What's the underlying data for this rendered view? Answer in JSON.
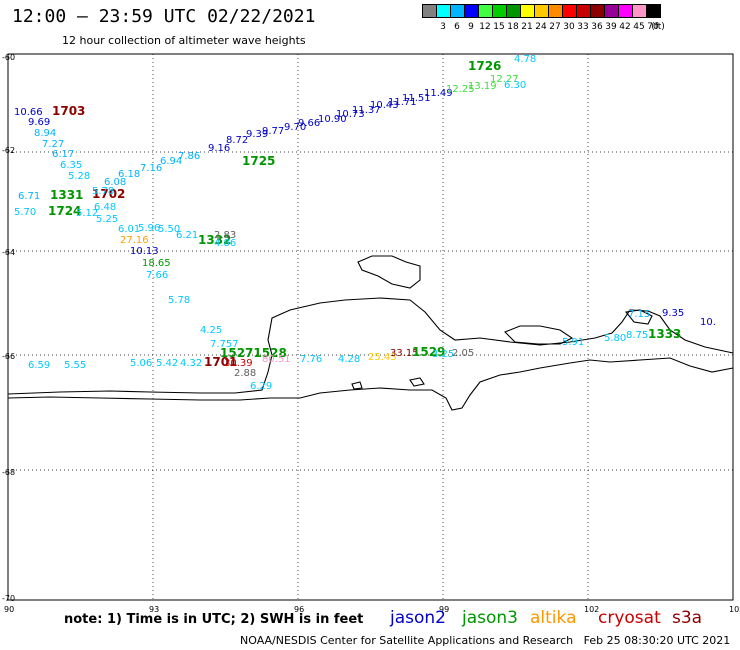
{
  "header": {
    "title": "12:00 – 23:59 UTC 02/22/2021",
    "subtitle": "12 hour collection of altimeter wave heights"
  },
  "scale": {
    "colors": [
      "#808080",
      "#00ffff",
      "#00b4ff",
      "#0000ff",
      "#40ff40",
      "#00cc00",
      "#009600",
      "#ffff00",
      "#ffc800",
      "#ff8c00",
      "#ff0000",
      "#c80000",
      "#8c0000",
      "#960096",
      "#ff00ff",
      "#ff96c8",
      "#000000"
    ],
    "labels": [
      "3",
      "6",
      "9",
      "12",
      "15",
      "18",
      "21",
      "24",
      "27",
      "30",
      "33",
      "36",
      "39",
      "42",
      "45",
      "70",
      "(ft)"
    ]
  },
  "axes": {
    "lat_labels": [
      "-60",
      "-62",
      "-64",
      "-66",
      "-68",
      "-70"
    ],
    "lon_labels": [
      "90",
      "93",
      "96",
      "99",
      "102",
      "105"
    ]
  },
  "observations": [
    {
      "text": "10.66",
      "color": "#0000c8"
    },
    {
      "text": "1703",
      "color": "#8c0000",
      "bold": true
    },
    {
      "text": "9.69",
      "color": "#0000c8"
    },
    {
      "text": "8.94",
      "color": "#00b4ff"
    },
    {
      "text": "7.27",
      "color": "#00b4ff"
    },
    {
      "text": "6.17",
      "color": "#00b4ff"
    },
    {
      "text": "6.35",
      "color": "#00c8ff"
    },
    {
      "text": "5.28",
      "color": "#00c8ff"
    },
    {
      "text": "6.71",
      "color": "#00b4ff"
    },
    {
      "text": "1331",
      "color": "#009600",
      "bold": true
    },
    {
      "text": "1702",
      "color": "#8c0000",
      "bold": true
    },
    {
      "text": "5.70",
      "color": "#00c8ff"
    },
    {
      "text": "1724",
      "color": "#009600",
      "bold": true
    },
    {
      "text": "5.78",
      "color": "#00c8ff"
    },
    {
      "text": "6.08",
      "color": "#00b4ff"
    },
    {
      "text": "6.18",
      "color": "#00b4ff"
    },
    {
      "text": "7.16",
      "color": "#00b4ff"
    },
    {
      "text": "6.94",
      "color": "#00b4ff"
    },
    {
      "text": "7.86",
      "color": "#00b4ff"
    },
    {
      "text": "1725",
      "color": "#009600",
      "bold": true
    },
    {
      "text": "9.16",
      "color": "#0000c8"
    },
    {
      "text": "8.72",
      "color": "#0000c8"
    },
    {
      "text": "9.39",
      "color": "#0000c8"
    },
    {
      "text": "9.77",
      "color": "#0000c8"
    },
    {
      "text": "9.70",
      "color": "#0000c8"
    },
    {
      "text": "9.66",
      "color": "#0000c8"
    },
    {
      "text": "10.90",
      "color": "#0000c8"
    },
    {
      "text": "10.73",
      "color": "#0000c8"
    },
    {
      "text": "11.37",
      "color": "#0000c8"
    },
    {
      "text": "10.43",
      "color": "#0000c8"
    },
    {
      "text": "11.71",
      "color": "#0000c8"
    },
    {
      "text": "11.51",
      "color": "#0000c8"
    },
    {
      "text": "11.49",
      "color": "#0000c8"
    },
    {
      "text": "12.25",
      "color": "#40dc40"
    },
    {
      "text": "13.19",
      "color": "#40dc40"
    },
    {
      "text": "12.27",
      "color": "#40dc40"
    },
    {
      "text": "1726",
      "color": "#009600",
      "bold": true
    },
    {
      "text": "4.78",
      "color": "#00c8ff"
    },
    {
      "text": "6.30",
      "color": "#00c8ff"
    },
    {
      "text": "6.48",
      "color": "#00c8ff"
    },
    {
      "text": "5.12",
      "color": "#00c8ff"
    },
    {
      "text": "5.25",
      "color": "#00c8ff"
    },
    {
      "text": "6.01",
      "color": "#00c8ff"
    },
    {
      "text": "5.96",
      "color": "#00c8ff"
    },
    {
      "text": "5.50",
      "color": "#00c8ff"
    },
    {
      "text": "6.21",
      "color": "#00c8ff"
    },
    {
      "text": "27.16",
      "color": "#ffa000"
    },
    {
      "text": "1332",
      "color": "#009600",
      "bold": true
    },
    {
      "text": "4.86",
      "color": "#00c8ff"
    },
    {
      "text": "2.83",
      "color": "#606060"
    },
    {
      "text": "10.13",
      "color": "#0000c8"
    },
    {
      "text": "18.65",
      "color": "#009600"
    },
    {
      "text": "7.66",
      "color": "#00c8ff"
    },
    {
      "text": "5.78",
      "color": "#00c8ff"
    },
    {
      "text": "4.25",
      "color": "#00c8ff"
    },
    {
      "text": "7.757",
      "color": "#00c8ff"
    },
    {
      "text": "15271528",
      "color": "#009600",
      "bold": true
    },
    {
      "text": "6.59",
      "color": "#00c8ff"
    },
    {
      "text": "5.55",
      "color": "#00c8ff"
    },
    {
      "text": "5.06",
      "color": "#00c8ff"
    },
    {
      "text": "5.42",
      "color": "#00c8ff"
    },
    {
      "text": "4.32",
      "color": "#00c8ff"
    },
    {
      "text": "1701",
      "color": "#8c0000",
      "bold": true
    },
    {
      "text": "30.39",
      "color": "#c80000"
    },
    {
      "text": "80.51",
      "color": "#ff96c8"
    },
    {
      "text": "7.76",
      "color": "#00c8ff"
    },
    {
      "text": "4.28",
      "color": "#00c8ff"
    },
    {
      "text": "25.43",
      "color": "#ffc800"
    },
    {
      "text": "33.15",
      "color": "#8c0000"
    },
    {
      "text": "1529",
      "color": "#009600",
      "bold": true
    },
    {
      "text": "3.25",
      "color": "#00c8ff"
    },
    {
      "text": "2.05",
      "color": "#606060"
    },
    {
      "text": "2.88",
      "color": "#606060"
    },
    {
      "text": "6.29",
      "color": "#00c8ff"
    },
    {
      "text": "5.91",
      "color": "#00c8ff"
    },
    {
      "text": "5.80",
      "color": "#00c8ff"
    },
    {
      "text": "8.75",
      "color": "#00c8ff"
    },
    {
      "text": "1333",
      "color": "#009600",
      "bold": true
    },
    {
      "text": "7.15",
      "color": "#00b4ff"
    },
    {
      "text": "9.35",
      "color": "#0000c8"
    },
    {
      "text": "10.",
      "color": "#0000c8"
    }
  ],
  "footer": {
    "note": "note:  1) Time is in UTC;  2) SWH is in feet",
    "satellites": [
      {
        "name": "jason2",
        "color": "#0000c8"
      },
      {
        "name": "jason3",
        "color": "#009600"
      },
      {
        "name": "altika",
        "color": "#ff9600"
      },
      {
        "name": "cryosat",
        "color": "#c80000"
      },
      {
        "name": "s3a",
        "color": "#8c0000"
      }
    ],
    "credit": "NOAA/NESDIS Center for Satellite Applications and Research",
    "timestamp": "Feb 25 08:30:20 UTC 2021"
  }
}
